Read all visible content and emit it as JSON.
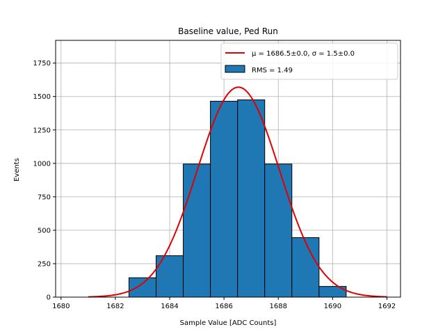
{
  "chart_data": {
    "type": "bar",
    "title": "Baseline value, Ped Run",
    "xlabel": "Sample Value [ADC Counts]",
    "ylabel": "Events",
    "xlim": [
      1679.8,
      1692.5
    ],
    "ylim": [
      0,
      1920
    ],
    "xticks": [
      1680,
      1682,
      1684,
      1686,
      1688,
      1690,
      1692
    ],
    "yticks": [
      0,
      250,
      500,
      750,
      1000,
      1250,
      1500,
      1750
    ],
    "grid": true,
    "legend_position": "top-right",
    "bar_color": "#1f77b4",
    "fit_color": "#e00000",
    "bins": [
      {
        "left": 1682.5,
        "right": 1683.5,
        "count": 145
      },
      {
        "left": 1683.5,
        "right": 1684.5,
        "count": 310
      },
      {
        "left": 1684.5,
        "right": 1685.5,
        "count": 995
      },
      {
        "left": 1685.5,
        "right": 1686.5,
        "count": 1465
      },
      {
        "left": 1686.5,
        "right": 1687.5,
        "count": 1475
      },
      {
        "left": 1687.5,
        "right": 1688.5,
        "count": 995
      },
      {
        "left": 1688.5,
        "right": 1689.5,
        "count": 445
      },
      {
        "left": 1689.5,
        "right": 1690.5,
        "count": 80
      }
    ],
    "fit": {
      "mu": 1686.53,
      "sigma": 1.51,
      "amplitude": 1570,
      "x_from": 1681,
      "x_to": 1692
    },
    "legend": [
      {
        "label": "μ = 1686.5±0.0, σ = 1.5±0.0",
        "kind": "line"
      },
      {
        "label": "RMS = 1.49",
        "kind": "patch"
      }
    ]
  }
}
